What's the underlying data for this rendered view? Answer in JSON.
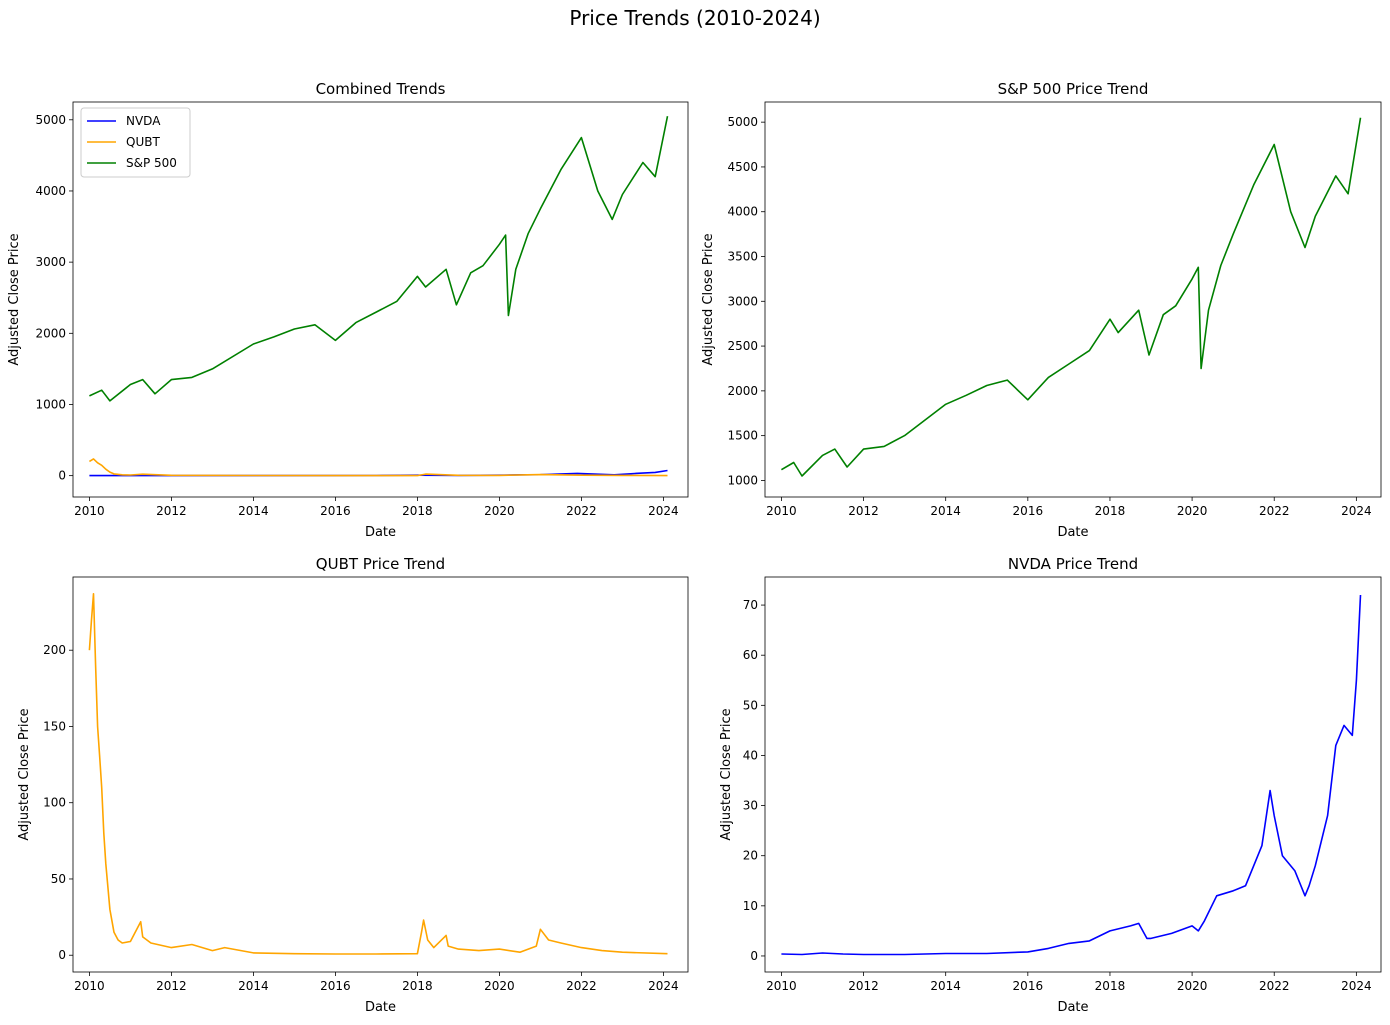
{
  "figure": {
    "suptitle": "Price Trends (2010-2024)"
  },
  "colors": {
    "NVDA": "#0000ff",
    "QUBT": "#ffa500",
    "SP500": "#008000"
  },
  "chart_data": [
    {
      "type": "line",
      "title": "Combined Trends",
      "xlabel": "Date",
      "ylabel": "Adjusted Close Price",
      "xlim": [
        2009.6,
        2024.6
      ],
      "ylim": [
        -300,
        5250
      ],
      "xticks": [
        2010,
        2012,
        2014,
        2016,
        2018,
        2020,
        2022,
        2024
      ],
      "xtick_labels": [
        "2010",
        "2012",
        "2014",
        "2016",
        "2018",
        "2020",
        "2022",
        "2024"
      ],
      "yticks": [
        0,
        1000,
        2000,
        3000,
        4000,
        5000
      ],
      "ytick_labels": [
        "0",
        "1000",
        "2000",
        "3000",
        "4000",
        "5000"
      ],
      "legend": {
        "position": "top-left",
        "entries": [
          "NVDA",
          "QUBT",
          "S&P 500"
        ]
      },
      "series": [
        {
          "name": "NVDA",
          "color": "#0000ff",
          "x": [
            2010,
            2012,
            2014,
            2016,
            2017,
            2018,
            2019,
            2020,
            2020.5,
            2021,
            2021.9,
            2022.8,
            2023.3,
            2023.8,
            2024.1
          ],
          "y": [
            0.4,
            0.3,
            0.5,
            0.6,
            2.5,
            6,
            4,
            6,
            12,
            14,
            32,
            12,
            30,
            45,
            72
          ]
        },
        {
          "name": "QUBT",
          "color": "#ffa500",
          "x": [
            2010,
            2010.1,
            2010.2,
            2010.3,
            2010.4,
            2010.5,
            2010.6,
            2010.8,
            2011,
            2011.3,
            2012,
            2014,
            2016,
            2018,
            2018.2,
            2019,
            2020,
            2021,
            2022,
            2023,
            2024.1
          ],
          "y": [
            200,
            235,
            180,
            145,
            90,
            50,
            25,
            12,
            9,
            20,
            5,
            2,
            0.8,
            1,
            22,
            5,
            3,
            15,
            6,
            3,
            1
          ]
        },
        {
          "name": "S&P 500",
          "color": "#008000",
          "x": [
            2010,
            2010.3,
            2010.5,
            2011,
            2011.3,
            2011.6,
            2012,
            2012.5,
            2013,
            2014,
            2014.5,
            2015,
            2015.5,
            2016,
            2016.5,
            2017,
            2017.5,
            2018,
            2018.2,
            2018.7,
            2018.95,
            2019.3,
            2019.6,
            2020,
            2020.15,
            2020.22,
            2020.4,
            2020.7,
            2021,
            2021.5,
            2022,
            2022.4,
            2022.75,
            2023,
            2023.5,
            2023.8,
            2024.1
          ],
          "y": [
            1120,
            1200,
            1050,
            1280,
            1350,
            1150,
            1350,
            1380,
            1500,
            1850,
            1950,
            2060,
            2120,
            1900,
            2150,
            2300,
            2450,
            2800,
            2650,
            2900,
            2400,
            2850,
            2950,
            3250,
            3380,
            2250,
            2900,
            3400,
            3750,
            4300,
            4750,
            4000,
            3600,
            3950,
            4400,
            4200,
            5050
          ]
        }
      ]
    },
    {
      "type": "line",
      "title": "S&P 500 Price Trend",
      "xlabel": "Date",
      "ylabel": "Adjusted Close Price",
      "xlim": [
        2009.6,
        2024.6
      ],
      "ylim": [
        815,
        5225
      ],
      "xticks": [
        2010,
        2012,
        2014,
        2016,
        2018,
        2020,
        2022,
        2024
      ],
      "xtick_labels": [
        "2010",
        "2012",
        "2014",
        "2016",
        "2018",
        "2020",
        "2022",
        "2024"
      ],
      "yticks": [
        1000,
        1500,
        2000,
        2500,
        3000,
        3500,
        4000,
        4500,
        5000
      ],
      "ytick_labels": [
        "1000",
        "1500",
        "2000",
        "2500",
        "3000",
        "3500",
        "4000",
        "4500",
        "5000"
      ],
      "series": [
        {
          "color": "#008000",
          "x": [
            2010,
            2010.3,
            2010.5,
            2011,
            2011.3,
            2011.6,
            2012,
            2012.5,
            2013,
            2014,
            2014.5,
            2015,
            2015.5,
            2016,
            2016.5,
            2017,
            2017.5,
            2018,
            2018.2,
            2018.7,
            2018.95,
            2019.3,
            2019.6,
            2020,
            2020.15,
            2020.22,
            2020.4,
            2020.7,
            2021,
            2021.5,
            2022,
            2022.4,
            2022.75,
            2023,
            2023.5,
            2023.8,
            2024.1
          ],
          "y": [
            1120,
            1200,
            1050,
            1280,
            1350,
            1150,
            1350,
            1380,
            1500,
            1850,
            1950,
            2060,
            2120,
            1900,
            2150,
            2300,
            2450,
            2800,
            2650,
            2900,
            2400,
            2850,
            2950,
            3250,
            3380,
            2250,
            2900,
            3400,
            3750,
            4300,
            4750,
            4000,
            3600,
            3950,
            4400,
            4200,
            5050
          ]
        }
      ]
    },
    {
      "type": "line",
      "title": "QUBT Price Trend",
      "xlabel": "Date",
      "ylabel": "Adjusted Close Price",
      "xlim": [
        2009.6,
        2024.6
      ],
      "ylim": [
        -11,
        248
      ],
      "xticks": [
        2010,
        2012,
        2014,
        2016,
        2018,
        2020,
        2022,
        2024
      ],
      "xtick_labels": [
        "2010",
        "2012",
        "2014",
        "2016",
        "2018",
        "2020",
        "2022",
        "2024"
      ],
      "yticks": [
        0,
        50,
        100,
        150,
        200
      ],
      "ytick_labels": [
        "0",
        "50",
        "100",
        "150",
        "200"
      ],
      "series": [
        {
          "color": "#ffa500",
          "x": [
            2010,
            2010.05,
            2010.1,
            2010.15,
            2010.2,
            2010.25,
            2010.3,
            2010.35,
            2010.4,
            2010.5,
            2010.6,
            2010.7,
            2010.8,
            2011,
            2011.25,
            2011.3,
            2011.5,
            2012,
            2012.5,
            2013,
            2013.3,
            2014,
            2015,
            2016,
            2017,
            2018,
            2018.1,
            2018.15,
            2018.25,
            2018.4,
            2018.7,
            2018.75,
            2019,
            2019.5,
            2020,
            2020.5,
            2020.9,
            2021,
            2021.2,
            2021.5,
            2022,
            2022.5,
            2023,
            2024.1
          ],
          "y": [
            200,
            220,
            237,
            190,
            150,
            130,
            110,
            80,
            60,
            30,
            15,
            10,
            8,
            9,
            22,
            12,
            8,
            5,
            7,
            3,
            5,
            1.5,
            1,
            0.8,
            0.8,
            1,
            15,
            23,
            10,
            5,
            13,
            6,
            4,
            3,
            4,
            2,
            6,
            17,
            10,
            8,
            5,
            3,
            2,
            1
          ]
        }
      ]
    },
    {
      "type": "line",
      "title": "NVDA Price Trend",
      "xlabel": "Date",
      "ylabel": "Adjusted Close Price",
      "xlim": [
        2009.6,
        2024.6
      ],
      "ylim": [
        -3.2,
        75.6
      ],
      "xticks": [
        2010,
        2012,
        2014,
        2016,
        2018,
        2020,
        2022,
        2024
      ],
      "xtick_labels": [
        "2010",
        "2012",
        "2014",
        "2016",
        "2018",
        "2020",
        "2022",
        "2024"
      ],
      "yticks": [
        0,
        10,
        20,
        30,
        40,
        50,
        60,
        70
      ],
      "ytick_labels": [
        "0",
        "10",
        "20",
        "30",
        "40",
        "50",
        "60",
        "70"
      ],
      "series": [
        {
          "color": "#0000ff",
          "x": [
            2010,
            2010.5,
            2011,
            2011.5,
            2012,
            2013,
            2014,
            2015,
            2016,
            2016.5,
            2017,
            2017.5,
            2018,
            2018.5,
            2018.7,
            2018.9,
            2019,
            2019.5,
            2020,
            2020.15,
            2020.3,
            2020.6,
            2021,
            2021.3,
            2021.7,
            2021.9,
            2022,
            2022.2,
            2022.5,
            2022.75,
            2022.85,
            2023,
            2023.3,
            2023.5,
            2023.7,
            2023.9,
            2024,
            2024.1
          ],
          "y": [
            0.4,
            0.3,
            0.6,
            0.4,
            0.3,
            0.3,
            0.5,
            0.5,
            0.8,
            1.5,
            2.5,
            3,
            5,
            6,
            6.5,
            3.5,
            3.5,
            4.5,
            6,
            5,
            7,
            12,
            13,
            14,
            22,
            33,
            28,
            20,
            17,
            12,
            14,
            18,
            28,
            42,
            46,
            44,
            55,
            72
          ]
        }
      ]
    }
  ]
}
